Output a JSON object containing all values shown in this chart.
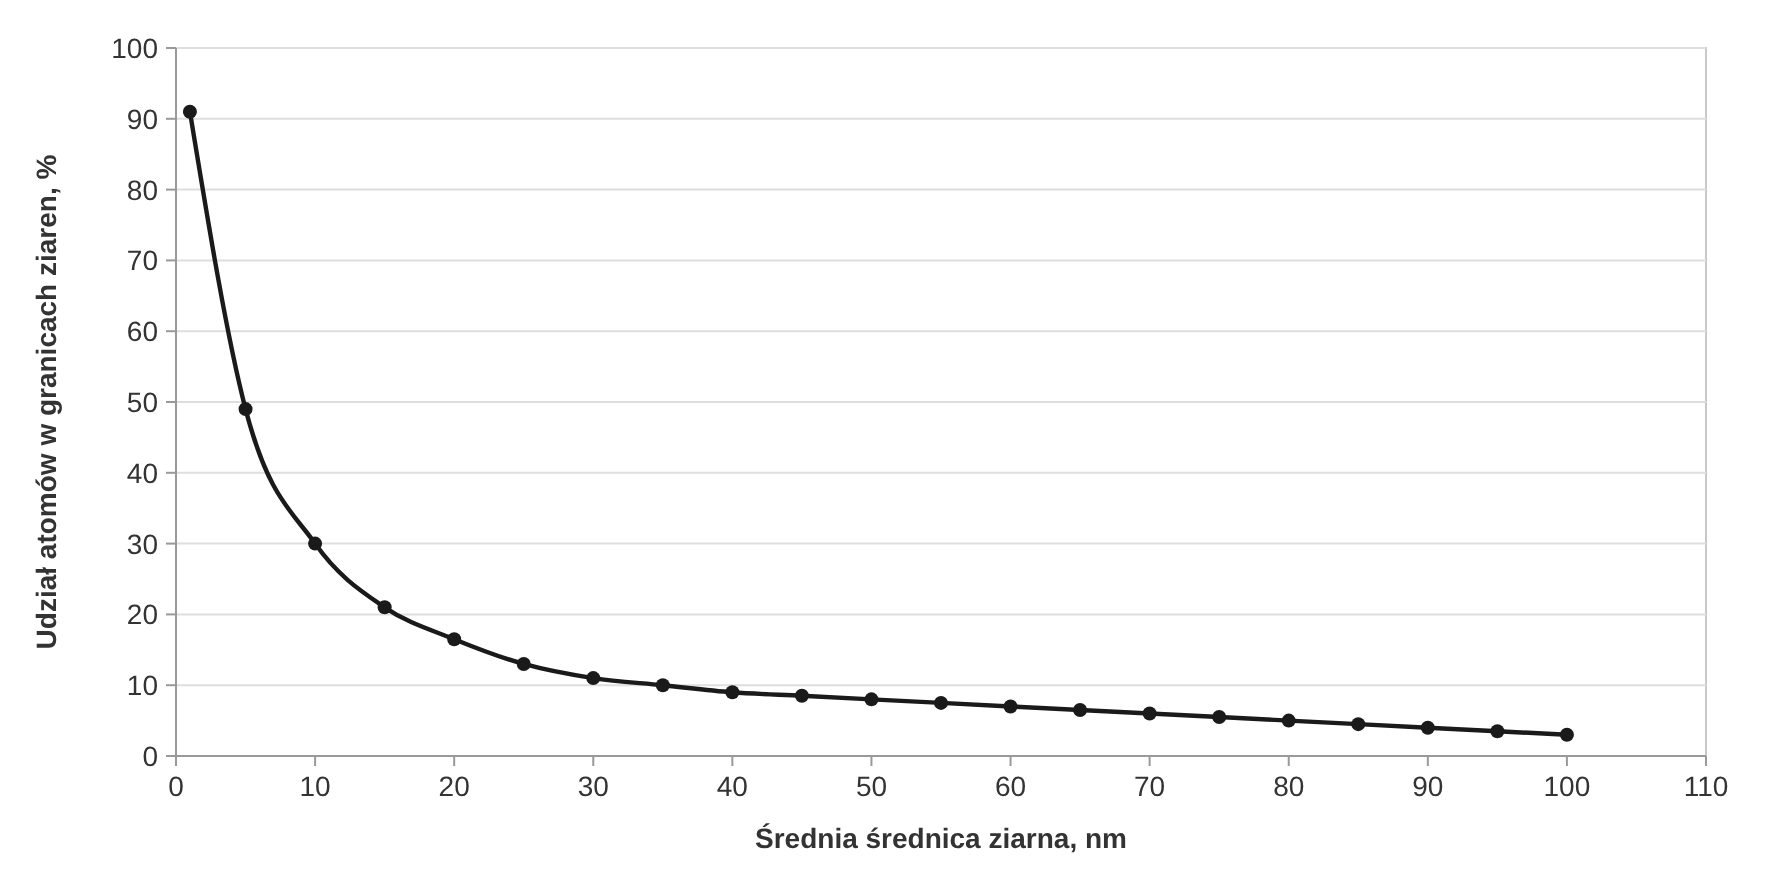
{
  "chart_data": {
    "type": "line",
    "xlabel": "Średnia średnica ziarna, nm",
    "ylabel": "Udział atomów w granicach ziaren, %",
    "x": [
      1,
      5,
      10,
      15,
      20,
      25,
      30,
      35,
      40,
      45,
      50,
      55,
      60,
      65,
      70,
      75,
      80,
      85,
      90,
      95,
      100
    ],
    "series": [
      {
        "color": "#1a1a1a",
        "values": [
          91,
          49,
          30,
          21,
          16.5,
          13,
          11,
          10,
          9,
          8.5,
          8,
          7.5,
          7,
          6.5,
          6,
          5.5,
          5,
          4.5,
          4,
          3.5,
          3
        ]
      }
    ],
    "xlim": [
      0,
      110
    ],
    "xticks": [
      0,
      10,
      20,
      30,
      40,
      50,
      60,
      70,
      80,
      90,
      100,
      110
    ],
    "ylim": [
      0,
      100
    ],
    "yticks": [
      0,
      10,
      20,
      30,
      40,
      50,
      60,
      70,
      80,
      90,
      100
    ],
    "grid": "y",
    "marker": "circle",
    "line_style": "solid"
  }
}
